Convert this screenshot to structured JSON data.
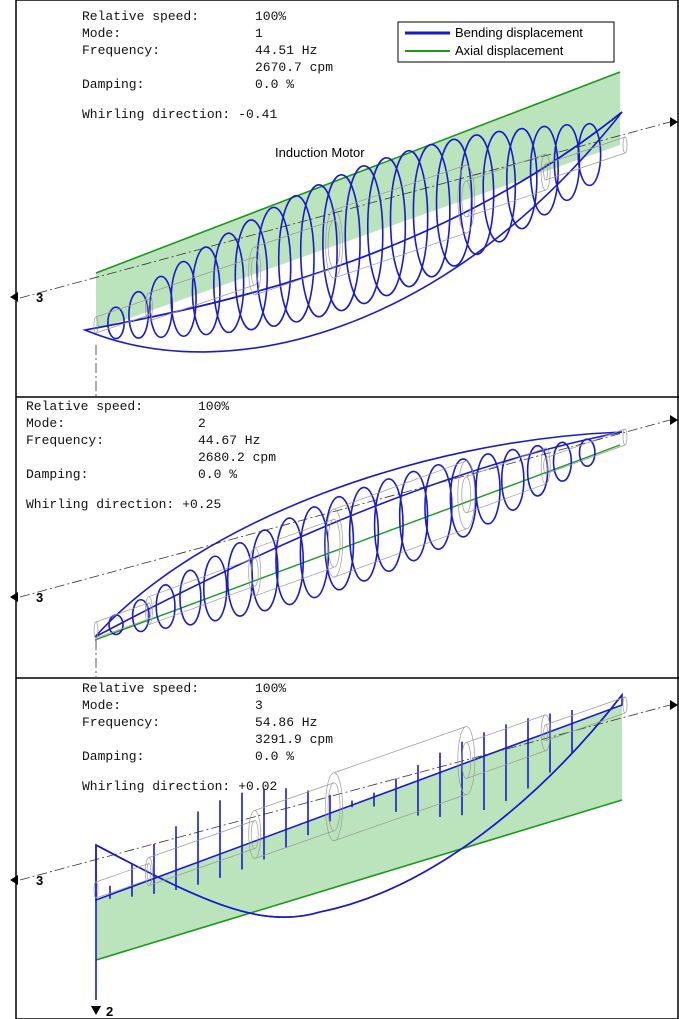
{
  "legend": [
    "Bending displacement",
    "Axial displacement"
  ],
  "annotation": "Induction Motor",
  "bottom_axis_label": "2",
  "panels": [
    {
      "axis_label": "3",
      "rows": [
        {
          "label": "Relative speed:",
          "values": [
            "100%"
          ]
        },
        {
          "label": "Mode:",
          "values": [
            "1"
          ]
        },
        {
          "label": "Frequency:",
          "values": [
            "44.51 Hz",
            "2670.7 cpm"
          ]
        },
        {
          "label": "Damping:",
          "values": [
            "0.0 %"
          ]
        }
      ],
      "whirl": {
        "label": "Whirling direction:",
        "value": "-0.41"
      }
    },
    {
      "axis_label": "3",
      "rows": [
        {
          "label": "Relative speed:",
          "values": [
            "100%"
          ]
        },
        {
          "label": "Mode:",
          "values": [
            "2"
          ]
        },
        {
          "label": "Frequency:",
          "values": [
            "44.67 Hz",
            "2680.2 cpm"
          ]
        },
        {
          "label": "Damping:",
          "values": [
            "0.0 %"
          ]
        }
      ],
      "whirl": {
        "label": "Whirling direction:",
        "value": "+0.25"
      }
    },
    {
      "axis_label": "3",
      "rows": [
        {
          "label": "Relative speed:",
          "values": [
            "100%"
          ]
        },
        {
          "label": "Mode:",
          "values": [
            "3"
          ]
        },
        {
          "label": "Frequency:",
          "values": [
            "54.86 Hz",
            "3291.9 cpm"
          ]
        },
        {
          "label": "Damping:",
          "values": [
            "0.0 %"
          ]
        }
      ],
      "whirl": {
        "label": "Whirling direction:",
        "value": "+0.02"
      }
    }
  ]
}
